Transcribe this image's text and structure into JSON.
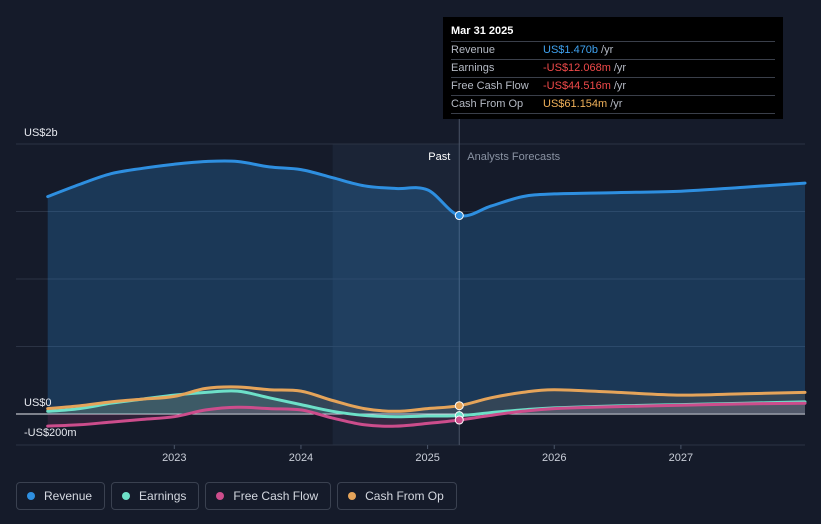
{
  "tooltip": {
    "date": "Mar 31 2025",
    "rows": [
      {
        "name": "Revenue",
        "value": "US$1.470b",
        "unit": "/yr",
        "color": "#3fa2f0"
      },
      {
        "name": "Earnings",
        "value": "-US$12.068m",
        "unit": "/yr",
        "color": "#f04a4a"
      },
      {
        "name": "Free Cash Flow",
        "value": "-US$44.516m",
        "unit": "/yr",
        "color": "#f04a4a"
      },
      {
        "name": "Cash From Op",
        "value": "US$61.154m",
        "unit": "/yr",
        "color": "#f0b15a"
      }
    ]
  },
  "labels": {
    "past": "Past",
    "forecast": "Analysts Forecasts"
  },
  "legend": [
    {
      "label": "Revenue",
      "color": "#2e8fe0"
    },
    {
      "label": "Earnings",
      "color": "#6de0c8"
    },
    {
      "label": "Free Cash Flow",
      "color": "#cc4d8c"
    },
    {
      "label": "Cash From Op",
      "color": "#e5a45a"
    }
  ],
  "chart_data": {
    "type": "line",
    "y_tick_labels": [
      "US$2b",
      "US$0",
      "-US$200m"
    ],
    "y_ticks": [
      2000,
      0,
      -200
    ],
    "x_tick_labels": [
      "2023",
      "2024",
      "2025",
      "2026",
      "2027"
    ],
    "x_ticks": [
      2023,
      2024,
      2025,
      2026,
      2027
    ],
    "xlim": [
      2021.75,
      2027.98
    ],
    "ylim": [
      -200,
      2000
    ],
    "past_end": 2025.25,
    "highlight_start": 2024.25,
    "series": [
      {
        "name": "Revenue",
        "color": "#2e8fe0",
        "points": [
          [
            2022.0,
            1610
          ],
          [
            2022.25,
            1700
          ],
          [
            2022.5,
            1780
          ],
          [
            2022.75,
            1820
          ],
          [
            2023.0,
            1850
          ],
          [
            2023.25,
            1870
          ],
          [
            2023.5,
            1870
          ],
          [
            2023.75,
            1830
          ],
          [
            2024.0,
            1810
          ],
          [
            2024.25,
            1750
          ],
          [
            2024.5,
            1690
          ],
          [
            2024.75,
            1670
          ],
          [
            2025.0,
            1660
          ],
          [
            2025.25,
            1470
          ],
          [
            2025.5,
            1540
          ],
          [
            2025.75,
            1610
          ],
          [
            2026.0,
            1630
          ],
          [
            2026.5,
            1640
          ],
          [
            2027.0,
            1650
          ],
          [
            2027.5,
            1680
          ],
          [
            2027.98,
            1710
          ]
        ]
      },
      {
        "name": "Earnings",
        "color": "#6de0c8",
        "points": [
          [
            2022.0,
            20
          ],
          [
            2022.25,
            40
          ],
          [
            2022.5,
            80
          ],
          [
            2022.75,
            110
          ],
          [
            2023.0,
            140
          ],
          [
            2023.25,
            160
          ],
          [
            2023.5,
            170
          ],
          [
            2023.75,
            120
          ],
          [
            2024.0,
            70
          ],
          [
            2024.25,
            20
          ],
          [
            2024.5,
            -10
          ],
          [
            2024.75,
            -20
          ],
          [
            2025.0,
            -15
          ],
          [
            2025.25,
            -12
          ],
          [
            2025.5,
            10
          ],
          [
            2025.75,
            30
          ],
          [
            2026.0,
            45
          ],
          [
            2026.5,
            60
          ],
          [
            2027.0,
            70
          ],
          [
            2027.5,
            80
          ],
          [
            2027.98,
            90
          ]
        ]
      },
      {
        "name": "Free Cash Flow",
        "color": "#cc4d8c",
        "points": [
          [
            2022.0,
            -90
          ],
          [
            2022.25,
            -80
          ],
          [
            2022.5,
            -60
          ],
          [
            2022.75,
            -40
          ],
          [
            2023.0,
            -20
          ],
          [
            2023.25,
            30
          ],
          [
            2023.5,
            50
          ],
          [
            2023.75,
            40
          ],
          [
            2024.0,
            30
          ],
          [
            2024.25,
            -30
          ],
          [
            2024.5,
            -80
          ],
          [
            2024.75,
            -90
          ],
          [
            2025.0,
            -70
          ],
          [
            2025.25,
            -44.5
          ],
          [
            2025.5,
            -10
          ],
          [
            2025.75,
            20
          ],
          [
            2026.0,
            40
          ],
          [
            2026.5,
            55
          ],
          [
            2027.0,
            65
          ],
          [
            2027.5,
            75
          ],
          [
            2027.98,
            80
          ]
        ]
      },
      {
        "name": "Cash From Op",
        "color": "#e5a45a",
        "points": [
          [
            2022.0,
            40
          ],
          [
            2022.25,
            60
          ],
          [
            2022.5,
            90
          ],
          [
            2022.75,
            110
          ],
          [
            2023.0,
            130
          ],
          [
            2023.25,
            190
          ],
          [
            2023.5,
            200
          ],
          [
            2023.75,
            180
          ],
          [
            2024.0,
            170
          ],
          [
            2024.25,
            100
          ],
          [
            2024.5,
            40
          ],
          [
            2024.75,
            20
          ],
          [
            2025.0,
            40
          ],
          [
            2025.25,
            61.2
          ],
          [
            2025.5,
            120
          ],
          [
            2025.75,
            160
          ],
          [
            2026.0,
            180
          ],
          [
            2026.5,
            160
          ],
          [
            2027.0,
            140
          ],
          [
            2027.5,
            150
          ],
          [
            2027.98,
            160
          ]
        ]
      }
    ],
    "grid": true
  }
}
